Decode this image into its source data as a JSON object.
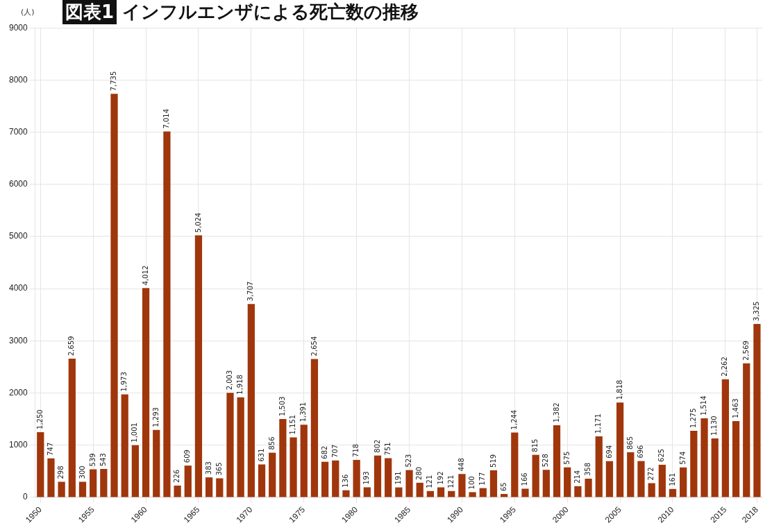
{
  "chart_data": {
    "type": "bar",
    "title": "インフルエンザによる死亡数の推移",
    "annotations": [
      "図表1"
    ],
    "ylabel": "(人)",
    "categories": [
      "1950",
      null,
      null,
      null,
      null,
      "1955",
      null,
      null,
      null,
      null,
      "1960",
      null,
      null,
      null,
      null,
      "1965",
      null,
      null,
      null,
      null,
      "1970",
      null,
      null,
      null,
      null,
      "1975",
      null,
      null,
      null,
      null,
      "1980",
      null,
      null,
      null,
      null,
      "1985",
      null,
      null,
      null,
      null,
      "1990",
      null,
      null,
      null,
      null,
      "1995",
      null,
      null,
      null,
      null,
      "2000",
      null,
      null,
      null,
      null,
      "2005",
      null,
      null,
      null,
      null,
      "2010",
      null,
      null,
      null,
      null,
      "2015",
      null,
      null,
      "2018"
    ],
    "values": [
      1250,
      747,
      298,
      2659,
      300,
      539,
      543,
      7735,
      1973,
      1001,
      4012,
      1293,
      7014,
      226,
      609,
      5024,
      383,
      365,
      2003,
      1918,
      3707,
      631,
      856,
      1503,
      1151,
      1391,
      2654,
      682,
      707,
      136,
      718,
      193,
      802,
      751,
      191,
      523,
      280,
      121,
      192,
      121,
      448,
      100,
      177,
      519,
      65,
      1244,
      166,
      815,
      528,
      1382,
      575,
      214,
      358,
      1171,
      694,
      1818,
      865,
      696,
      272,
      625,
      161,
      574,
      1275,
      1514,
      1130,
      2262,
      1463,
      2569,
      3325
    ],
    "color": "#a0360c",
    "ylim": [
      0,
      9000
    ],
    "yticks": [
      0,
      1000,
      2000,
      3000,
      4000,
      5000,
      6000,
      7000,
      8000,
      9000
    ],
    "grid": true,
    "value_labels": [
      "1,250",
      "747",
      "298",
      "2,659",
      "300",
      "539",
      "543",
      "7,735",
      "1,973",
      "1,001",
      "4,012",
      "1,293",
      "7,014",
      "226",
      "609",
      "5,024",
      "383",
      "365",
      "2,003",
      "1,918",
      "3,707",
      "631",
      "856",
      "1,503",
      "1,151",
      "1,391",
      "2,654",
      "682",
      "707",
      "136",
      "718",
      "193",
      "802",
      "751",
      "191",
      "523",
      "280",
      "121",
      "192",
      "121",
      "448",
      "100",
      "177",
      "519",
      "65",
      "1,244",
      "166",
      "815",
      "528",
      "1,382",
      "575",
      "214",
      "358",
      "1,171",
      "694",
      "1,818",
      "865",
      "696",
      "272",
      "625",
      "161",
      "574",
      "1,275",
      "1,514",
      "1,130",
      "2,262",
      "1,463",
      "2,569",
      "3,325"
    ]
  }
}
